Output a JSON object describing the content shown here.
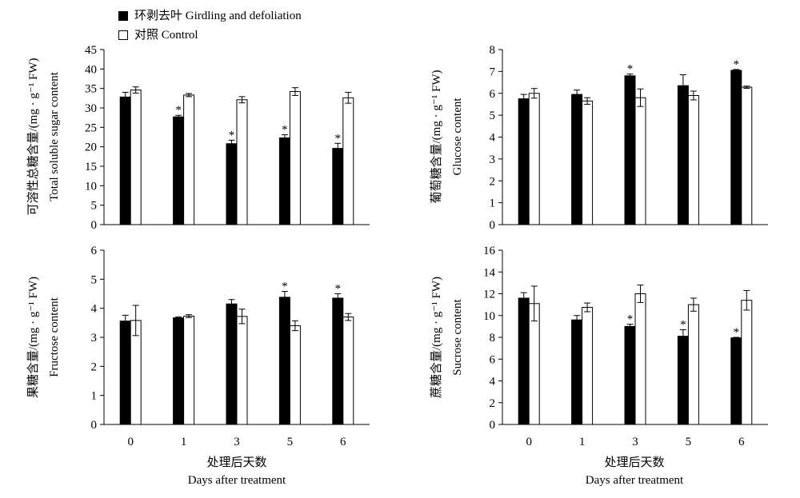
{
  "legend": {
    "treatment": "环剥去叶 Girdling and defoliation",
    "control": "对照 Control"
  },
  "colors": {
    "treatment": "#000000",
    "control": "#ffffff",
    "axis": "#000000"
  },
  "xaxis": {
    "label_cn": "处理后天数",
    "label_en": "Days after treatment"
  },
  "chart_data": [
    {
      "type": "bar",
      "panel": "total-soluble-sugar",
      "ylabel_cn": "可溶性总糖含量/(mg · g⁻¹ FW)",
      "ylabel_en": "Total soluble sugar content",
      "ylim": [
        0,
        45
      ],
      "yticks": [
        0,
        5,
        10,
        15,
        20,
        25,
        30,
        35,
        40,
        45
      ],
      "categories": [
        "0",
        "1",
        "3",
        "5",
        "6"
      ],
      "show_xticks": false,
      "series": [
        {
          "name": "环剥去叶 Girdling and defoliation",
          "values": [
            32.8,
            27.7,
            20.8,
            22.3,
            19.6
          ],
          "errors": [
            1.2,
            0.4,
            0.9,
            0.8,
            1.3
          ]
        },
        {
          "name": "对照 Control",
          "values": [
            34.6,
            33.3,
            32.1,
            34.2,
            32.6
          ],
          "errors": [
            0.8,
            0.4,
            0.8,
            1.0,
            1.4
          ]
        }
      ],
      "significant": [
        false,
        true,
        true,
        true,
        true
      ]
    },
    {
      "type": "bar",
      "panel": "glucose",
      "ylabel_cn": "葡萄糖含量/(mg · g⁻¹ FW)",
      "ylabel_en": "Glucose content",
      "ylim": [
        0,
        8
      ],
      "yticks": [
        0,
        1,
        2,
        3,
        4,
        5,
        6,
        7,
        8
      ],
      "categories": [
        "0",
        "1",
        "3",
        "5",
        "6"
      ],
      "show_xticks": false,
      "series": [
        {
          "name": "环剥去叶 Girdling and defoliation",
          "values": [
            5.75,
            5.95,
            6.8,
            6.35,
            7.05
          ],
          "errors": [
            0.2,
            0.2,
            0.08,
            0.5,
            0.04
          ]
        },
        {
          "name": "对照 Control",
          "values": [
            6.0,
            5.65,
            5.8,
            5.9,
            6.28
          ],
          "errors": [
            0.22,
            0.15,
            0.4,
            0.2,
            0.05
          ]
        }
      ],
      "significant": [
        false,
        false,
        true,
        false,
        true
      ]
    },
    {
      "type": "bar",
      "panel": "fructose",
      "ylabel_cn": "果糖含量/(mg · g⁻¹ FW)",
      "ylabel_en": "Fructose content",
      "ylim": [
        0,
        6
      ],
      "yticks": [
        0,
        1,
        2,
        3,
        4,
        5,
        6
      ],
      "categories": [
        "0",
        "1",
        "3",
        "5",
        "6"
      ],
      "show_xticks": true,
      "series": [
        {
          "name": "环剥去叶 Girdling and defoliation",
          "values": [
            3.56,
            3.67,
            4.15,
            4.38,
            4.35
          ],
          "errors": [
            0.2,
            0.03,
            0.15,
            0.2,
            0.15
          ]
        },
        {
          "name": "对照 Control",
          "values": [
            3.58,
            3.73,
            3.72,
            3.4,
            3.7
          ],
          "errors": [
            0.52,
            0.05,
            0.25,
            0.17,
            0.12
          ]
        }
      ],
      "significant": [
        false,
        false,
        false,
        true,
        true
      ]
    },
    {
      "type": "bar",
      "panel": "sucrose",
      "ylabel_cn": "蔗糖含量/(mg · g⁻¹ FW)",
      "ylabel_en": "Sucrose content",
      "ylim": [
        0,
        16
      ],
      "yticks": [
        0,
        2,
        4,
        6,
        8,
        10,
        12,
        14,
        16
      ],
      "categories": [
        "0",
        "1",
        "3",
        "5",
        "6"
      ],
      "show_xticks": true,
      "series": [
        {
          "name": "环剥去叶 Girdling and defoliation",
          "values": [
            11.6,
            9.6,
            9.0,
            8.1,
            7.95
          ],
          "errors": [
            0.5,
            0.4,
            0.2,
            0.6,
            0.05
          ]
        },
        {
          "name": "对照 Control",
          "values": [
            11.1,
            10.75,
            12.0,
            11.0,
            11.4
          ],
          "errors": [
            1.6,
            0.4,
            0.8,
            0.6,
            0.9
          ]
        }
      ],
      "significant": [
        false,
        false,
        true,
        true,
        true
      ]
    }
  ]
}
